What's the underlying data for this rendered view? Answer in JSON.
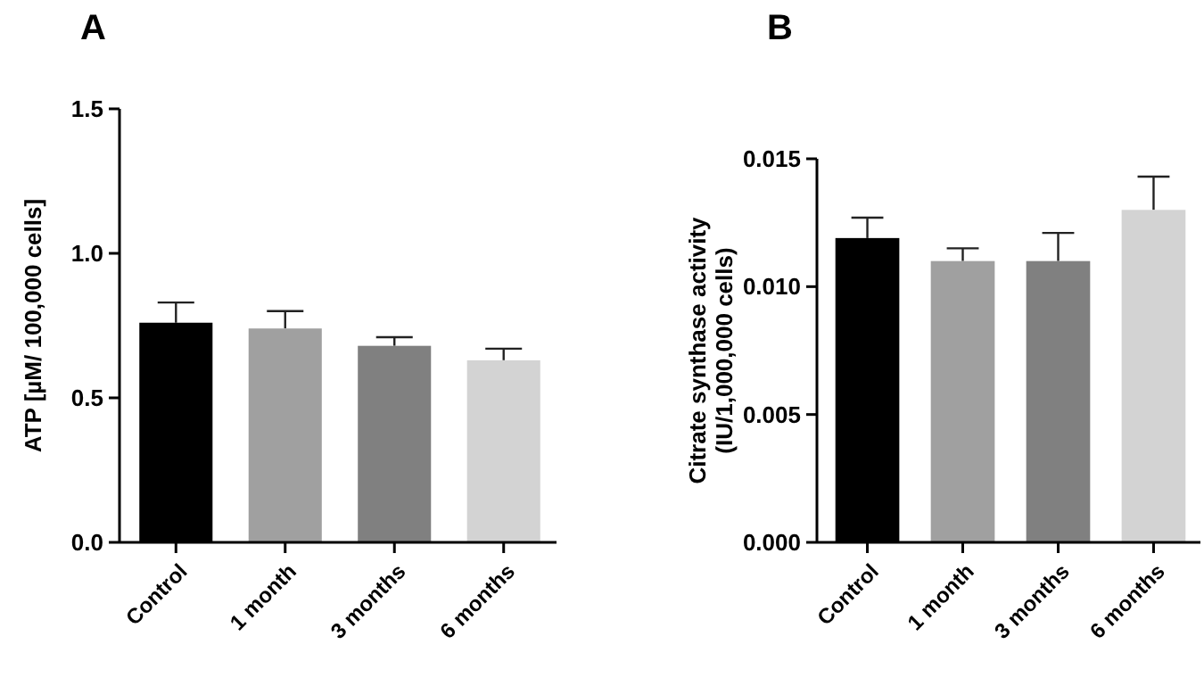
{
  "chart_data": [
    {
      "type": "bar",
      "title": "A",
      "ylabel": "ATP [µM/ 100,000 cells]",
      "categories": [
        "Control",
        "1 month",
        "3 months",
        "6 months"
      ],
      "values": [
        0.76,
        0.74,
        0.68,
        0.63
      ],
      "errors": [
        0.07,
        0.06,
        0.03,
        0.04
      ],
      "colors": [
        "#000000",
        "#a0a0a0",
        "#808080",
        "#d3d3d3"
      ],
      "ylim": [
        0,
        1.5
      ],
      "yticks": [
        {
          "value": 0,
          "label": "0.0"
        },
        0.5,
        {
          "value": 1,
          "label": "1.0"
        },
        1.5
      ],
      "grid": false
    },
    {
      "type": "bar",
      "title": "B",
      "ylabel": "Citrate synthase activity\n(IU/1,000,000 cells)",
      "categories": [
        "Control",
        "1 month",
        "3 months",
        "6 months"
      ],
      "values": [
        0.0119,
        0.011,
        0.011,
        0.013
      ],
      "errors": [
        0.0008,
        0.0005,
        0.0011,
        0.0013
      ],
      "colors": [
        "#000000",
        "#a0a0a0",
        "#808080",
        "#d3d3d3"
      ],
      "ylim": [
        0,
        0.015
      ],
      "yticks": [
        {
          "value": 0,
          "label": "0.000"
        },
        0.005,
        {
          "value": 0.01,
          "label": "0.010"
        },
        0.015
      ],
      "grid": false
    }
  ]
}
